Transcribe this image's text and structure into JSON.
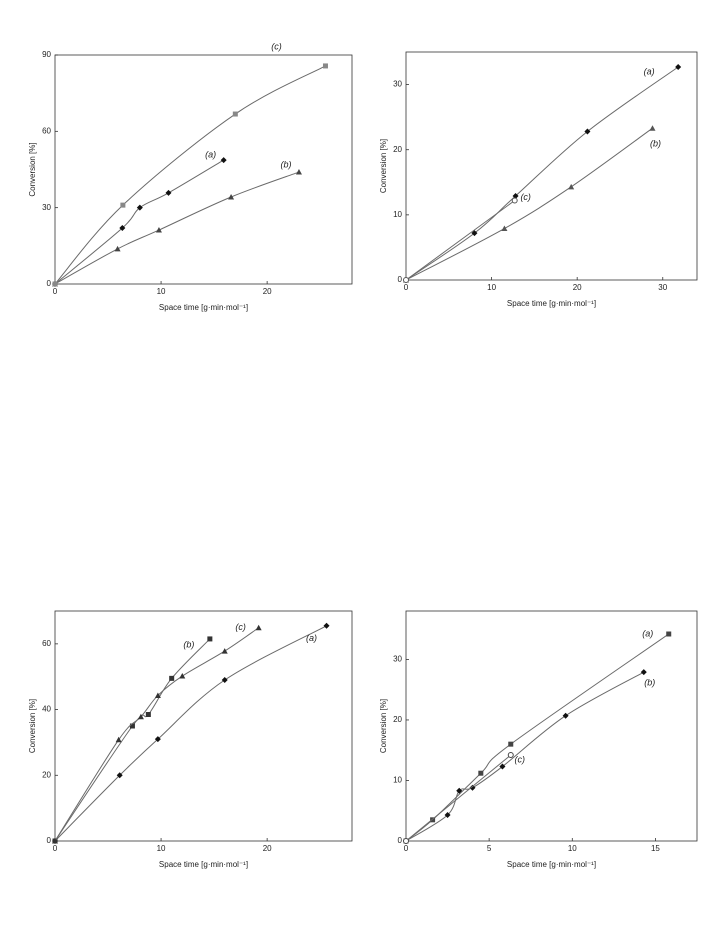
{
  "chart_data": [
    {
      "type": "scatter",
      "xlabel": "Space time [g·min·mol⁻¹]",
      "ylabel": "Conversion [%]",
      "xlim": [
        0,
        28
      ],
      "ylim": [
        0,
        90
      ],
      "xticks": [
        0,
        10,
        20
      ],
      "yticks": [
        0,
        30,
        60,
        90
      ],
      "series": [
        {
          "name": "(a)",
          "marker": "diamond",
          "color": "#111111",
          "x": [
            0,
            6.35,
            8,
            10.7,
            15.9
          ],
          "values": [
            0,
            22,
            30,
            35.8,
            48.7
          ]
        },
        {
          "name": "(b)",
          "marker": "triangle",
          "color": "#444444",
          "x": [
            0,
            5.9,
            9.8,
            16.6,
            23
          ],
          "values": [
            0,
            13.8,
            21.2,
            34.2,
            44
          ]
        },
        {
          "name": "(c)",
          "marker": "square",
          "color": "#888888",
          "x": [
            0,
            6.4,
            17,
            25.5
          ],
          "values": [
            0,
            31,
            66.8,
            85.7
          ]
        }
      ]
    },
    {
      "type": "scatter",
      "xlabel": "Space time [g·min·mol⁻¹]",
      "ylabel": "Conversion [%]",
      "xlim": [
        0,
        34
      ],
      "ylim": [
        0,
        35
      ],
      "xticks": [
        0,
        10,
        20,
        30
      ],
      "yticks": [
        0,
        10,
        20,
        30
      ],
      "series": [
        {
          "name": "(a)",
          "marker": "diamond",
          "color": "#111111",
          "x": [
            0,
            8,
            12.8,
            21.2,
            31.8
          ],
          "values": [
            0,
            7.2,
            12.9,
            22.8,
            32.7
          ]
        },
        {
          "name": "(b)",
          "marker": "triangle",
          "color": "#555555",
          "x": [
            0,
            11.5,
            19.3,
            28.8
          ],
          "values": [
            0,
            7.9,
            14.3,
            23.3
          ]
        },
        {
          "name": "(c)",
          "marker": "circle-open",
          "color": "#555555",
          "x": [
            0,
            12.7
          ],
          "values": [
            0,
            12.2
          ]
        }
      ]
    },
    {
      "type": "scatter",
      "xlabel": "Space time [g·min·mol⁻¹]",
      "ylabel": "Conversion [%]",
      "xlim": [
        0,
        28
      ],
      "ylim": [
        0,
        70
      ],
      "xticks": [
        0,
        10,
        20
      ],
      "yticks": [
        0,
        20,
        40,
        60
      ],
      "series": [
        {
          "name": "(a)",
          "marker": "diamond",
          "color": "#111111",
          "x": [
            0,
            6.1,
            9.7,
            16,
            25.6
          ],
          "values": [
            0,
            20,
            31,
            49,
            65.5
          ]
        },
        {
          "name": "(b)",
          "marker": "square",
          "color": "#333333",
          "x": [
            0,
            7.3,
            8.8,
            11,
            14.6
          ],
          "values": [
            0,
            35,
            38.5,
            49.5,
            61.5
          ]
        },
        {
          "name": "(c)",
          "marker": "triangle",
          "color": "#333333",
          "x": [
            0,
            6,
            8.1,
            9.7,
            12,
            16,
            19.2
          ],
          "values": [
            0,
            30.8,
            37.8,
            44.3,
            50.2,
            57.8,
            64.9
          ]
        }
      ]
    },
    {
      "type": "scatter",
      "xlabel": "Space time [g·min·mol⁻¹]",
      "ylabel": "Conversion [%]",
      "xlim": [
        0,
        17.5
      ],
      "ylim": [
        0,
        38
      ],
      "xticks": [
        0,
        5,
        10,
        15
      ],
      "yticks": [
        0,
        10,
        20,
        30
      ],
      "series": [
        {
          "name": "(a)",
          "marker": "square",
          "color": "#444444",
          "x": [
            0,
            1.6,
            4.5,
            6.3,
            15.8
          ],
          "values": [
            0,
            3.5,
            11.2,
            16,
            34.2
          ]
        },
        {
          "name": "(b)",
          "marker": "diamond",
          "color": "#111111",
          "x": [
            0,
            2.5,
            3.2,
            4,
            5.8,
            9.6,
            14.3
          ],
          "values": [
            0,
            4.3,
            8.3,
            8.8,
            12.3,
            20.7,
            27.9
          ]
        },
        {
          "name": "(c)",
          "marker": "circle-open",
          "color": "#444444",
          "x": [
            0,
            6.3
          ],
          "values": [
            0,
            14.2
          ]
        }
      ]
    }
  ]
}
